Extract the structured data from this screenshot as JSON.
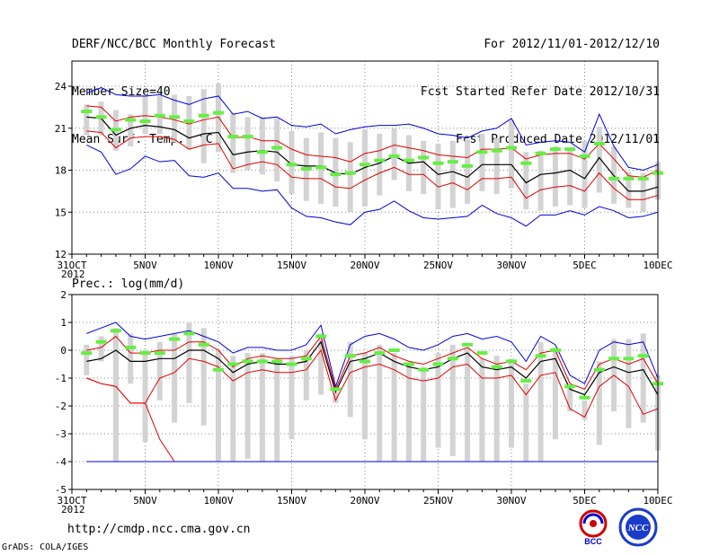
{
  "header": {
    "title": "DERF/NCC/BCC Monthly Forecast",
    "member_size": "Member Size=40",
    "variable": "Mean Surf. Temp.: °C",
    "period": "For 2012/11/01-2012/12/10",
    "started": "Fcst Started Refer Date 2012/10/31",
    "produced": "Fcst Produced Date 2012/11/01"
  },
  "footer": {
    "url": "http://cmdp.ncc.cma.gov.cn",
    "credit": "GrADS: COLA/IGES",
    "logo_bcc": "BCC",
    "logo_ncc": "NCC"
  },
  "colors": {
    "box": "#d3d3d3",
    "median": "#66ee44",
    "mean": "#000000",
    "spread": "#e00000",
    "envelope": "#0000dd",
    "grid": "#888888"
  },
  "chart_data": [
    {
      "type": "line",
      "title": "Mean Surf. Temp.: °C",
      "xlabel": "",
      "ylabel": "",
      "x_start": "31OCT 2012",
      "xticks": [
        "31OCT",
        "5NOV",
        "10NOV",
        "15NOV",
        "20NOV",
        "25NOV",
        "30NOV",
        "5DEC",
        "10DEC"
      ],
      "xtick_index": [
        0,
        5,
        10,
        15,
        20,
        25,
        30,
        35,
        40
      ],
      "x_sublabel": "2012",
      "ylim": [
        12,
        25.8
      ],
      "yticks": [
        12,
        15,
        18,
        21,
        24
      ],
      "grid": true,
      "x": [
        1,
        2,
        3,
        4,
        5,
        6,
        7,
        8,
        9,
        10,
        11,
        12,
        13,
        14,
        15,
        16,
        17,
        18,
        19,
        20,
        21,
        22,
        23,
        24,
        25,
        26,
        27,
        28,
        29,
        30,
        31,
        32,
        33,
        34,
        35,
        36,
        37,
        38,
        39,
        40
      ],
      "series": [
        {
          "name": "max",
          "values": [
            23.5,
            23.9,
            23.4,
            23.3,
            23.3,
            23.4,
            23.0,
            22.7,
            23.1,
            23.3,
            22.0,
            22.2,
            21.7,
            21.8,
            21.2,
            21.1,
            21.3,
            20.6,
            20.9,
            21.1,
            21.2,
            21.2,
            21.3,
            21.0,
            20.6,
            20.5,
            20.3,
            20.8,
            21.0,
            21.7,
            19.8,
            20.0,
            20.1,
            20.0,
            19.3,
            22.0,
            19.7,
            18.2,
            18.0,
            18.4
          ]
        },
        {
          "name": "mean+sd",
          "values": [
            22.6,
            22.5,
            21.5,
            21.8,
            21.9,
            21.8,
            21.6,
            21.3,
            21.6,
            21.8,
            20.3,
            20.4,
            20.1,
            20.1,
            19.5,
            19.1,
            19.0,
            18.9,
            18.6,
            19.2,
            19.4,
            19.8,
            19.6,
            19.4,
            19.1,
            19.0,
            18.9,
            19.5,
            19.5,
            19.6,
            18.8,
            19.1,
            19.2,
            19.2,
            18.8,
            19.9,
            18.8,
            17.6,
            17.5,
            18.0
          ]
        },
        {
          "name": "mean",
          "values": [
            21.8,
            21.7,
            20.5,
            21.0,
            21.2,
            21.1,
            20.9,
            20.3,
            20.6,
            20.7,
            19.1,
            19.3,
            19.4,
            19.3,
            18.4,
            18.3,
            18.3,
            17.8,
            17.7,
            18.2,
            18.5,
            19.0,
            18.5,
            18.6,
            17.7,
            17.9,
            17.5,
            18.4,
            18.4,
            18.4,
            17.1,
            17.7,
            17.8,
            18.0,
            17.4,
            18.9,
            17.6,
            16.5,
            16.5,
            16.8
          ]
        },
        {
          "name": "mean-sd",
          "values": [
            20.8,
            20.7,
            19.6,
            20.3,
            20.4,
            20.4,
            20.2,
            19.5,
            19.8,
            19.9,
            18.1,
            18.4,
            18.6,
            18.4,
            17.5,
            17.4,
            17.4,
            16.8,
            16.7,
            17.3,
            17.8,
            18.2,
            17.7,
            17.7,
            16.8,
            17.1,
            16.6,
            17.4,
            17.4,
            17.5,
            16.0,
            16.6,
            16.8,
            16.9,
            16.5,
            17.8,
            16.7,
            15.9,
            15.9,
            16.2
          ]
        },
        {
          "name": "min",
          "values": [
            19.8,
            19.3,
            17.7,
            18.1,
            19.0,
            18.6,
            18.7,
            17.6,
            17.5,
            17.8,
            16.7,
            16.7,
            16.5,
            16.6,
            15.3,
            14.7,
            14.6,
            14.3,
            14.1,
            15.0,
            15.2,
            15.8,
            15.1,
            14.6,
            14.5,
            14.6,
            14.7,
            15.5,
            14.9,
            14.6,
            14.0,
            14.8,
            14.8,
            15.1,
            14.8,
            15.4,
            15.1,
            14.6,
            14.7,
            15.0
          ]
        }
      ],
      "boxes": [
        [
          20.5,
          22.7
        ],
        [
          20.5,
          22.9
        ],
        [
          19.4,
          22.3
        ],
        [
          19.7,
          22.0
        ],
        [
          20.6,
          23.4
        ],
        [
          20.6,
          23.3
        ],
        [
          20.0,
          23.4
        ],
        [
          19.5,
          23.3
        ],
        [
          18.5,
          23.8
        ],
        [
          19.3,
          24.2
        ],
        [
          17.8,
          22.1
        ],
        [
          18.0,
          21.8
        ],
        [
          17.7,
          21.8
        ],
        [
          17.2,
          21.7
        ],
        [
          16.3,
          20.8
        ],
        [
          15.8,
          20.3
        ],
        [
          15.6,
          20.7
        ],
        [
          15.4,
          20.3
        ],
        [
          15.0,
          20.0
        ],
        [
          15.4,
          20.9
        ],
        [
          16.2,
          20.6
        ],
        [
          17.3,
          21.0
        ],
        [
          16.5,
          20.5
        ],
        [
          16.3,
          20.1
        ],
        [
          15.2,
          19.9
        ],
        [
          15.3,
          20.1
        ],
        [
          15.6,
          20.2
        ],
        [
          16.5,
          20.6
        ],
        [
          16.3,
          20.3
        ],
        [
          16.7,
          21.6
        ],
        [
          15.2,
          19.3
        ],
        [
          15.1,
          19.4
        ],
        [
          15.4,
          19.7
        ],
        [
          15.5,
          19.6
        ],
        [
          15.3,
          20.1
        ],
        [
          16.4,
          21.1
        ],
        [
          15.6,
          19.7
        ],
        [
          15.3,
          17.9
        ],
        [
          15.0,
          17.8
        ],
        [
          15.9,
          18.6
        ]
      ],
      "median_marks": [
        22.2,
        21.8,
        20.9,
        21.6,
        21.5,
        21.9,
        21.8,
        21.5,
        21.9,
        22.1,
        20.4,
        20.4,
        19.3,
        19.6,
        18.4,
        18.1,
        18.2,
        17.7,
        17.8,
        18.4,
        18.7,
        19.0,
        18.7,
        18.9,
        18.5,
        18.6,
        18.3,
        19.3,
        19.4,
        19.6,
        18.5,
        19.2,
        19.5,
        19.5,
        19.0,
        19.9,
        17.4,
        17.4,
        17.4,
        17.8
      ]
    },
    {
      "type": "line",
      "title": "Prec.: log(mm/d)",
      "xlabel": "",
      "ylabel": "",
      "xticks": [
        "31OCT",
        "5NOV",
        "10NOV",
        "15NOV",
        "20NOV",
        "25NOV",
        "30NOV",
        "5DEC",
        "10DEC"
      ],
      "xtick_index": [
        0,
        5,
        10,
        15,
        20,
        25,
        30,
        35,
        40
      ],
      "x_sublabel": "2012",
      "ylim": [
        -5,
        2
      ],
      "yticks": [
        -5,
        -4,
        -3,
        -2,
        -1,
        0,
        1,
        2
      ],
      "grid": true,
      "x": [
        1,
        2,
        3,
        4,
        5,
        6,
        7,
        8,
        9,
        10,
        11,
        12,
        13,
        14,
        15,
        16,
        17,
        18,
        19,
        20,
        21,
        22,
        23,
        24,
        25,
        26,
        27,
        28,
        29,
        30,
        31,
        32,
        33,
        34,
        35,
        36,
        37,
        38,
        39,
        40
      ],
      "series": [
        {
          "name": "max",
          "values": [
            0.6,
            0.8,
            1.0,
            0.5,
            0.4,
            0.5,
            0.6,
            0.7,
            0.5,
            0.3,
            -0.1,
            0.1,
            0.1,
            0.0,
            0.0,
            0.2,
            0.9,
            -1.3,
            0.2,
            0.5,
            0.6,
            0.4,
            0.1,
            0.0,
            0.2,
            0.5,
            0.6,
            0.4,
            0.5,
            0.3,
            -0.4,
            0.5,
            0.2,
            -0.9,
            -1.2,
            0.0,
            0.3,
            0.2,
            0.3,
            -1.0
          ]
        },
        {
          "name": "mean+sd",
          "values": [
            0.0,
            0.1,
            0.5,
            -0.1,
            -0.1,
            0.0,
            0.0,
            0.3,
            0.3,
            0.0,
            -0.6,
            -0.3,
            -0.2,
            -0.3,
            -0.3,
            -0.2,
            0.5,
            -1.4,
            -0.2,
            -0.1,
            0.1,
            -0.2,
            -0.4,
            -0.5,
            -0.3,
            -0.1,
            0.1,
            -0.3,
            -0.5,
            -0.4,
            -0.7,
            -0.1,
            0.0,
            -1.2,
            -1.4,
            -0.5,
            -0.3,
            -0.5,
            -0.3,
            -1.2
          ]
        },
        {
          "name": "mean",
          "values": [
            -0.4,
            -0.3,
            0.0,
            -0.4,
            -0.4,
            -0.3,
            -0.3,
            0.0,
            0.0,
            -0.3,
            -0.8,
            -0.5,
            -0.4,
            -0.5,
            -0.5,
            -0.4,
            0.3,
            -1.5,
            -0.4,
            -0.3,
            -0.1,
            -0.4,
            -0.6,
            -0.7,
            -0.6,
            -0.3,
            -0.1,
            -0.6,
            -0.7,
            -0.6,
            -1.0,
            -0.4,
            -0.3,
            -1.4,
            -1.6,
            -0.8,
            -0.6,
            -0.8,
            -0.7,
            -1.6
          ]
        },
        {
          "name": "mean-sd",
          "values": [
            -1.0,
            -1.2,
            -1.3,
            -1.9,
            -1.9,
            -3.2,
            -4.0,
            -4.0,
            -4.0,
            -4.0,
            -4.0,
            -4.0,
            -4.0,
            -4.0,
            -4.0,
            -4.0,
            -4.0,
            -4.0,
            -4.0,
            -4.0,
            -4.0,
            -4.0,
            -4.0,
            -4.0,
            -4.0,
            -4.0,
            -4.0,
            -4.0,
            -4.0,
            -4.0,
            -4.0,
            -4.0,
            -4.0,
            -4.0,
            -4.0,
            -4.0,
            -4.0,
            -4.0,
            -4.0,
            -4.0
          ]
        },
        {
          "name": "min",
          "values": [
            -4.0,
            -4.0,
            -4.0,
            -4.0,
            -4.0,
            -4.0,
            -4.0,
            -4.0,
            -4.0,
            -4.0,
            -4.0,
            -4.0,
            -4.0,
            -4.0,
            -4.0,
            -4.0,
            -4.0,
            -4.0,
            -4.0,
            -4.0,
            -4.0,
            -4.0,
            -4.0,
            -4.0,
            -4.0,
            -4.0,
            -4.0,
            -4.0,
            -4.0,
            -4.0,
            -4.0,
            -4.0,
            -4.0,
            -4.0,
            -4.0,
            -4.0,
            -4.0,
            -4.0,
            -4.0,
            -4.0
          ]
        }
      ],
      "lower_sd_line": [
        -1.0,
        -1.2,
        -1.3,
        -1.9,
        -1.9,
        -1.0,
        -0.8,
        -0.3,
        -0.4,
        -0.6,
        -1.1,
        -0.8,
        -0.7,
        -0.8,
        -0.8,
        -0.7,
        0.0,
        -1.8,
        -0.8,
        -0.6,
        -0.5,
        -0.7,
        -1.0,
        -1.1,
        -1.0,
        -0.6,
        -0.5,
        -1.0,
        -1.0,
        -0.9,
        -1.6,
        -0.9,
        -0.8,
        -2.1,
        -2.4,
        -1.3,
        -0.9,
        -1.3,
        -2.3,
        -2.1
      ],
      "boxes": [
        [
          -0.9,
          0.2
        ],
        [
          -0.4,
          0.5
        ],
        [
          -4.0,
          0.8
        ],
        [
          -1.2,
          0.6
        ],
        [
          -3.3,
          0.0
        ],
        [
          -1.8,
          0.3
        ],
        [
          -2.6,
          0.6
        ],
        [
          -1.9,
          1.0
        ],
        [
          -2.7,
          0.8
        ],
        [
          -4.0,
          0.0
        ],
        [
          -4.0,
          -0.2
        ],
        [
          -3.9,
          -0.1
        ],
        [
          -4.0,
          -0.1
        ],
        [
          -4.0,
          -0.3
        ],
        [
          -3.2,
          -0.2
        ],
        [
          -1.8,
          0.0
        ],
        [
          -1.6,
          0.6
        ],
        [
          -1.9,
          -1.5
        ],
        [
          -2.4,
          0.3
        ],
        [
          -3.2,
          -0.1
        ],
        [
          -4.0,
          0.2
        ],
        [
          -4.0,
          -0.1
        ],
        [
          -4.0,
          -0.5
        ],
        [
          -4.0,
          -0.6
        ],
        [
          -3.5,
          -0.1
        ],
        [
          -3.8,
          0.2
        ],
        [
          -4.0,
          0.1
        ],
        [
          -4.0,
          -0.3
        ],
        [
          -4.0,
          -0.2
        ],
        [
          -3.5,
          -0.3
        ],
        [
          -4.0,
          -1.2
        ],
        [
          -4.0,
          0.3
        ],
        [
          -3.2,
          0.1
        ],
        [
          -2.2,
          -1.3
        ],
        [
          -2.5,
          -1.8
        ],
        [
          -3.4,
          -0.4
        ],
        [
          -2.2,
          0.4
        ],
        [
          -2.8,
          0.4
        ],
        [
          -2.6,
          0.6
        ],
        [
          -3.6,
          -0.9
        ]
      ],
      "median_marks": [
        -0.1,
        0.3,
        0.7,
        0.1,
        -0.1,
        -0.1,
        0.4,
        0.6,
        0.2,
        -0.7,
        -0.5,
        -0.4,
        -0.4,
        -0.4,
        -0.5,
        -0.3,
        0.5,
        -1.4,
        -0.2,
        -0.4,
        -0.1,
        0.0,
        -0.5,
        -0.7,
        -0.5,
        -0.3,
        0.2,
        -0.1,
        -0.6,
        -0.4,
        -1.1,
        -0.2,
        0.0,
        -1.3,
        -1.7,
        -0.7,
        -0.3,
        -0.3,
        -0.2,
        -1.2
      ]
    }
  ]
}
